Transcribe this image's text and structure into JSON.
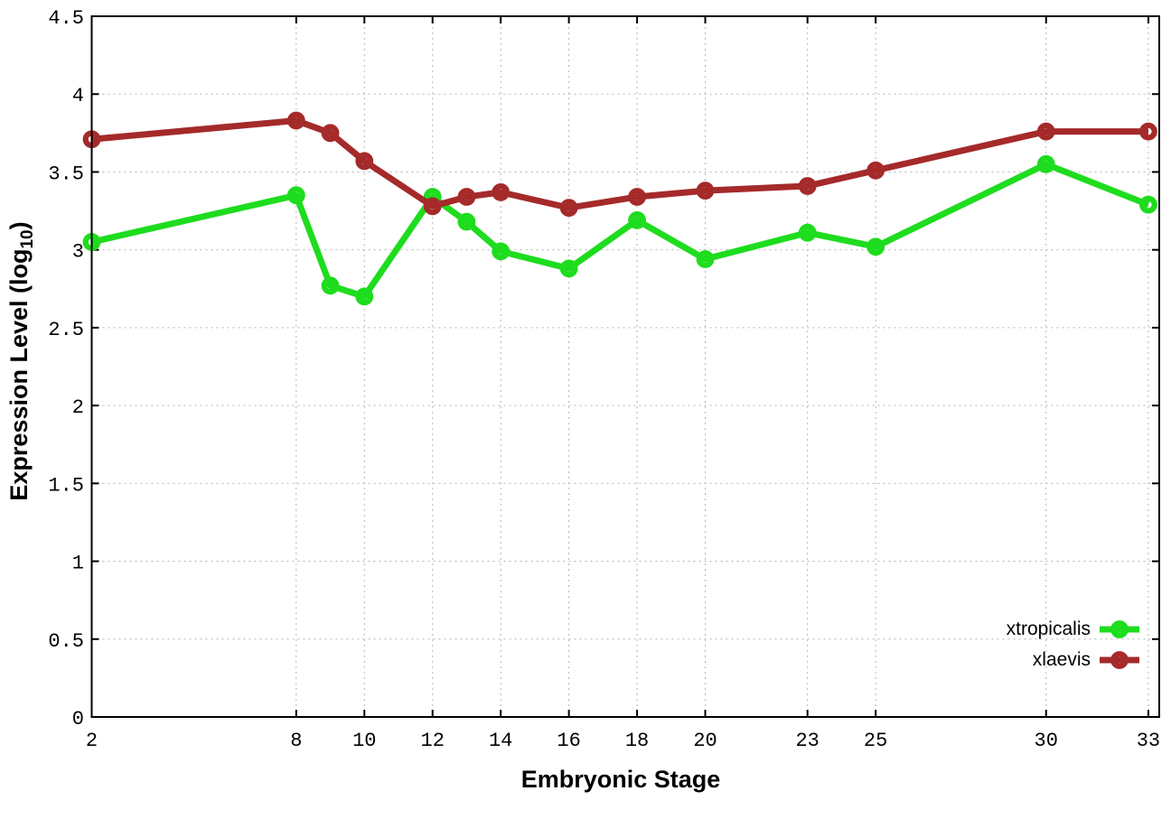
{
  "chart_data": {
    "type": "line",
    "title": "",
    "xlabel": "Embryonic Stage",
    "ylabel": "Expression Level (log10)",
    "ylabel_parts": {
      "main": "Expression Level (log",
      "sub": "10",
      "end": ")"
    },
    "x": [
      2,
      8,
      9,
      10,
      12,
      13,
      14,
      16,
      18,
      20,
      23,
      25,
      30,
      33
    ],
    "series": [
      {
        "name": "xtropicalis",
        "color": "#1edc1e",
        "values": [
          3.05,
          3.35,
          2.77,
          2.7,
          3.34,
          3.18,
          2.99,
          2.88,
          3.19,
          2.94,
          3.11,
          3.02,
          3.55,
          3.29
        ]
      },
      {
        "name": "xlaevis",
        "color": "#a52a2a",
        "values": [
          3.71,
          3.83,
          3.75,
          3.57,
          3.28,
          3.34,
          3.37,
          3.27,
          3.34,
          3.38,
          3.41,
          3.51,
          3.76,
          3.76
        ]
      }
    ],
    "xticks": {
      "values": [
        2,
        8,
        10,
        12,
        14,
        16,
        18,
        20,
        23,
        25,
        30,
        33
      ],
      "labels": [
        "2",
        "8",
        "10",
        "12",
        "14",
        "16",
        "18",
        "20",
        "23",
        "25",
        "30",
        "33"
      ]
    },
    "yticks": {
      "values": [
        0,
        0.5,
        1,
        1.5,
        2,
        2.5,
        3,
        3.5,
        4,
        4.5
      ],
      "labels": [
        "0",
        "0.5",
        "1",
        "1.5",
        "2",
        "2.5",
        "3",
        "3.5",
        "4",
        "4.5"
      ]
    },
    "xlim": [
      2,
      33.32
    ],
    "ylim": [
      0,
      4.5
    ],
    "grid": true,
    "legend_position": "bottom-right",
    "colors": {
      "axis": "#000000",
      "grid": "#b5b5b5",
      "background": "#ffffff"
    }
  },
  "legend": {
    "items": [
      {
        "label": "xtropicalis"
      },
      {
        "label": "xlaevis"
      }
    ]
  }
}
